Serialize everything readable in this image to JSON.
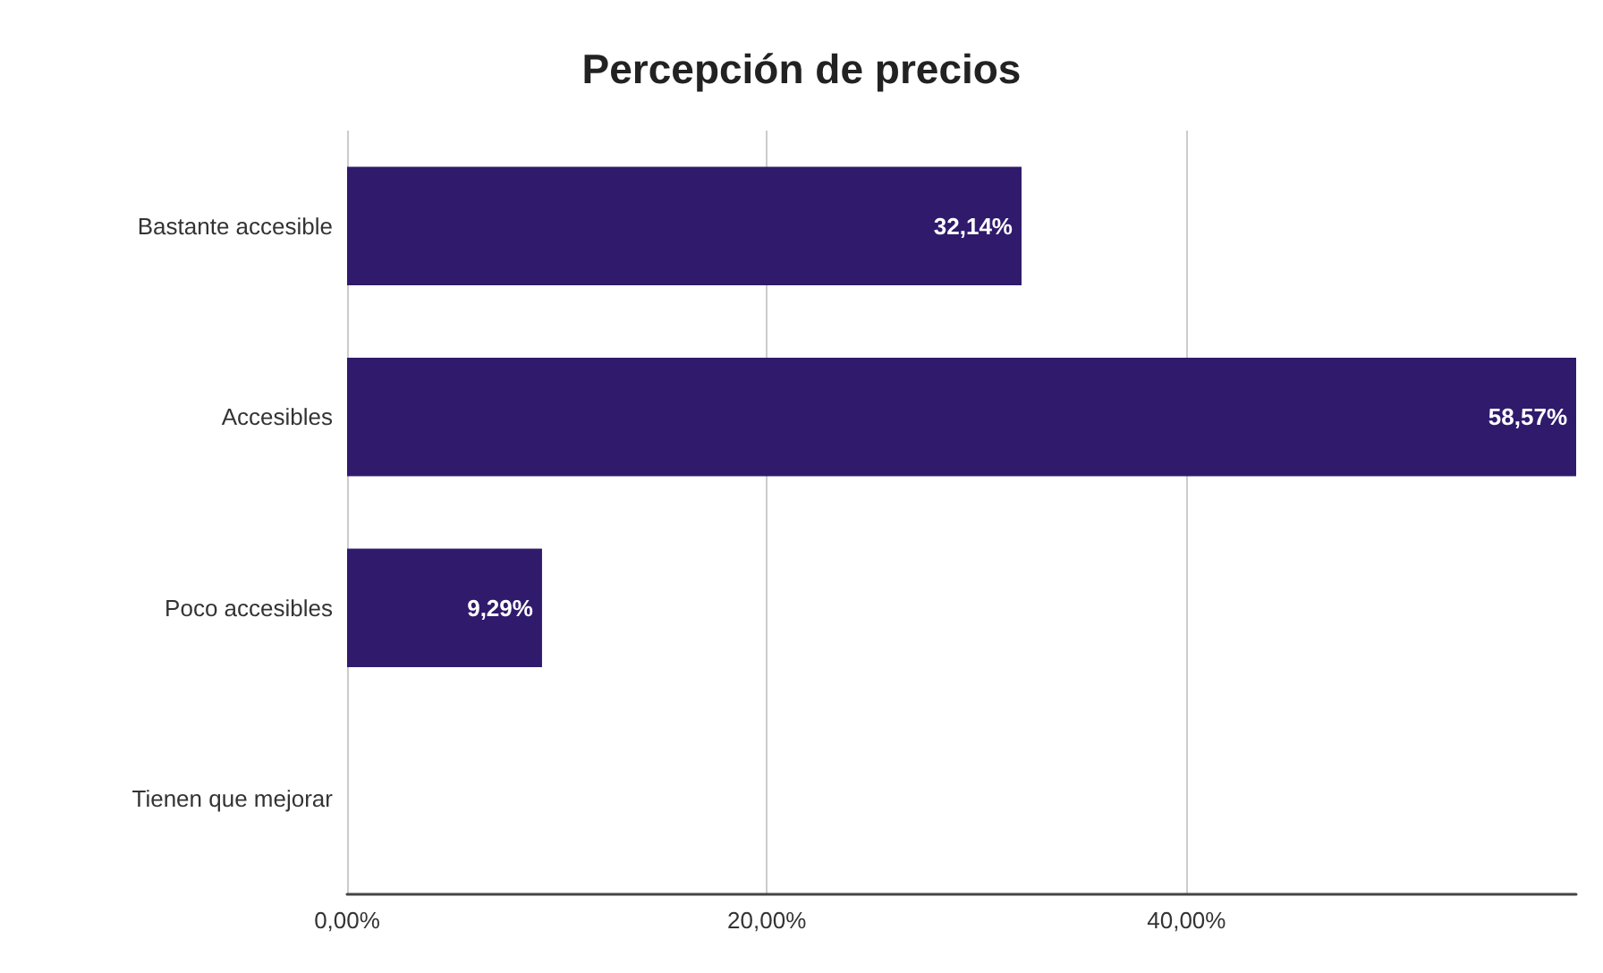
{
  "chart_data": {
    "type": "bar",
    "title": "Percepción de precios",
    "orientation": "horizontal",
    "categories": [
      "Bastante accesible",
      "Accesibles",
      "Poco accesibles",
      "Tienen que mejorar"
    ],
    "values": [
      32.14,
      58.57,
      9.29,
      0
    ],
    "value_labels": [
      "32,14%",
      "58,57%",
      "9,29%",
      null
    ],
    "color": "#2f1a6c",
    "xlim": [
      0,
      58.57
    ],
    "xticks": [
      {
        "value": 0,
        "label": "0,00%"
      },
      {
        "value": 20,
        "label": "20,00%"
      },
      {
        "value": 40,
        "label": "40,00%"
      }
    ],
    "grid": "x"
  }
}
